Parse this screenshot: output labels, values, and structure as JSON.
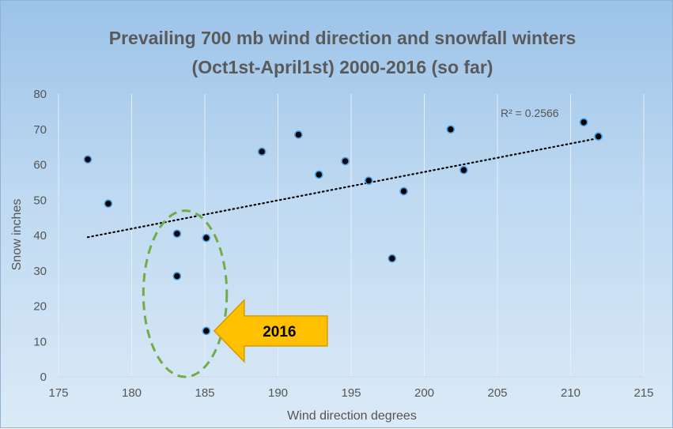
{
  "chart_data": {
    "type": "scatter",
    "title_lines": [
      "Prevailing 700 mb wind direction and snowfall winters",
      "(Oct1st-April1st) 2000-2016 (so far)"
    ],
    "xlabel": "Wind direction degrees",
    "ylabel": "Snow inches",
    "xlim": [
      175,
      215
    ],
    "ylim": [
      0,
      80
    ],
    "xticks": [
      175,
      180,
      185,
      190,
      195,
      200,
      205,
      210,
      215
    ],
    "yticks": [
      0,
      10,
      20,
      30,
      40,
      50,
      60,
      70,
      80
    ],
    "grid": "vertical",
    "points": [
      {
        "x": 177.0,
        "y": 61.5
      },
      {
        "x": 178.4,
        "y": 49.0
      },
      {
        "x": 183.1,
        "y": 40.5
      },
      {
        "x": 183.1,
        "y": 28.5
      },
      {
        "x": 185.1,
        "y": 39.3
      },
      {
        "x": 185.1,
        "y": 13.0
      },
      {
        "x": 188.9,
        "y": 63.7
      },
      {
        "x": 191.4,
        "y": 68.5
      },
      {
        "x": 192.8,
        "y": 57.2
      },
      {
        "x": 194.6,
        "y": 61.0
      },
      {
        "x": 196.2,
        "y": 55.5
      },
      {
        "x": 197.8,
        "y": 33.5
      },
      {
        "x": 198.6,
        "y": 52.5
      },
      {
        "x": 201.8,
        "y": 70.0
      },
      {
        "x": 202.7,
        "y": 58.5
      },
      {
        "x": 210.9,
        "y": 72.0
      },
      {
        "x": 211.9,
        "y": 68.0
      }
    ],
    "trendline": {
      "type": "linear",
      "x": [
        177.0,
        211.9
      ],
      "y": [
        39.5,
        67.5
      ],
      "style": "dotted"
    },
    "r_squared_label": "R² = 0.2566",
    "annotation": {
      "label": "2016",
      "points_to": {
        "x": 185.1,
        "y": 13.0
      },
      "highlight_ellipse": {
        "x_range": [
          180.8,
          186.5
        ],
        "y_range": [
          0,
          47
        ]
      }
    },
    "colors": {
      "point_fill": "#000000",
      "point_outline": "#4a9de0",
      "trendline": "#000000",
      "ellipse": "#70ad47",
      "arrow_fill": "#ffc000",
      "gridline": "#e6eef7"
    }
  }
}
